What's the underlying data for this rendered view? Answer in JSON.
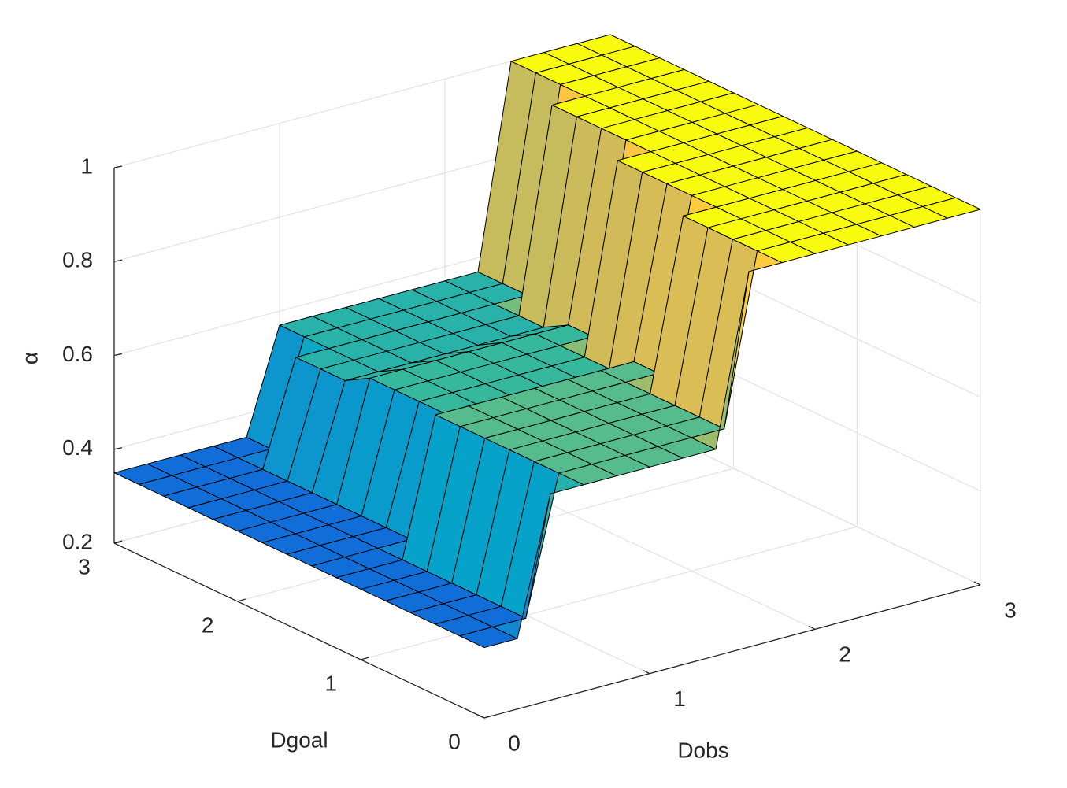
{
  "chart_data": {
    "type": "surface",
    "xlabel": "Dobs",
    "ylabel": "Dgoal",
    "zlabel": "α",
    "colormap": "parula",
    "grid": true,
    "xlim": [
      0,
      3
    ],
    "ylim": [
      0,
      3
    ],
    "zlim": [
      0.2,
      1
    ],
    "xticks": [
      0,
      1,
      2,
      3
    ],
    "yticks": [
      0,
      1,
      2,
      3
    ],
    "zticks": [
      0.2,
      0.4,
      0.6,
      0.8,
      1
    ],
    "x": [
      0,
      0.2,
      0.4,
      0.6,
      0.8,
      1,
      1.2,
      1.4,
      1.6,
      1.8,
      2,
      2.2,
      2.4,
      2.6,
      2.8,
      3
    ],
    "y": [
      0,
      0.2,
      0.4,
      0.6,
      0.8,
      1,
      1.2,
      1.4,
      1.6,
      1.8,
      2,
      2.2,
      2.4,
      2.6,
      2.8,
      3
    ],
    "z": [
      [
        0.35,
        0.35,
        0.64,
        0.64,
        0.64,
        0.64,
        0.64,
        0.64,
        1,
        1,
        1,
        1,
        1,
        1,
        1,
        1
      ],
      [
        0.35,
        0.35,
        0.35,
        0.64,
        0.64,
        0.64,
        0.64,
        0.64,
        0.64,
        1,
        1,
        1,
        1,
        1,
        1,
        1
      ],
      [
        0.35,
        0.35,
        0.35,
        0.64,
        0.64,
        0.64,
        0.64,
        0.64,
        0.64,
        1,
        1,
        1,
        1,
        1,
        1,
        1
      ],
      [
        0.35,
        0.35,
        0.35,
        0.64,
        0.64,
        0.64,
        0.64,
        0.64,
        0.64,
        1,
        1,
        1,
        1,
        1,
        1,
        1
      ],
      [
        0.35,
        0.35,
        0.35,
        0.64,
        0.64,
        0.64,
        0.64,
        0.64,
        0.64,
        1,
        1,
        1,
        1,
        1,
        1,
        1
      ],
      [
        0.35,
        0.35,
        0.35,
        0.64,
        0.64,
        0.64,
        0.64,
        0.64,
        0.64,
        0.64,
        1,
        1,
        1,
        1,
        1,
        1
      ],
      [
        0.35,
        0.35,
        0.35,
        0.64,
        0.64,
        0.64,
        0.64,
        0.64,
        0.64,
        0.64,
        1,
        1,
        1,
        1,
        1,
        1
      ],
      [
        0.35,
        0.35,
        0.35,
        0.35,
        0.6,
        0.6,
        0.6,
        0.6,
        0.6,
        0.6,
        1,
        1,
        1,
        1,
        1,
        1
      ],
      [
        0.35,
        0.35,
        0.35,
        0.35,
        0.6,
        0.6,
        0.6,
        0.6,
        0.6,
        0.6,
        1,
        1,
        1,
        1,
        1,
        1
      ],
      [
        0.35,
        0.35,
        0.35,
        0.35,
        0.6,
        0.6,
        0.6,
        0.6,
        0.6,
        0.6,
        0.6,
        1,
        1,
        1,
        1,
        1
      ],
      [
        0.35,
        0.35,
        0.35,
        0.35,
        0.6,
        0.6,
        0.6,
        0.6,
        0.6,
        0.6,
        0.6,
        1,
        1,
        1,
        1,
        1
      ],
      [
        0.35,
        0.35,
        0.35,
        0.35,
        0.57,
        0.57,
        0.57,
        0.57,
        0.57,
        0.57,
        0.57,
        1,
        1,
        1,
        1,
        1
      ],
      [
        0.35,
        0.35,
        0.35,
        0.35,
        0.57,
        0.57,
        0.57,
        0.57,
        0.57,
        0.57,
        0.57,
        1,
        1,
        1,
        1,
        1
      ],
      [
        0.35,
        0.35,
        0.35,
        0.35,
        0.57,
        0.57,
        0.57,
        0.57,
        0.57,
        0.57,
        0.57,
        0.57,
        1,
        1,
        1,
        1
      ],
      [
        0.35,
        0.35,
        0.35,
        0.35,
        0.35,
        0.57,
        0.57,
        0.57,
        0.57,
        0.57,
        0.57,
        0.57,
        1,
        1,
        1,
        1
      ],
      [
        0.35,
        0.35,
        0.35,
        0.35,
        0.35,
        0.57,
        0.57,
        0.57,
        0.57,
        0.57,
        0.57,
        0.57,
        1,
        1,
        1,
        1
      ]
    ]
  }
}
